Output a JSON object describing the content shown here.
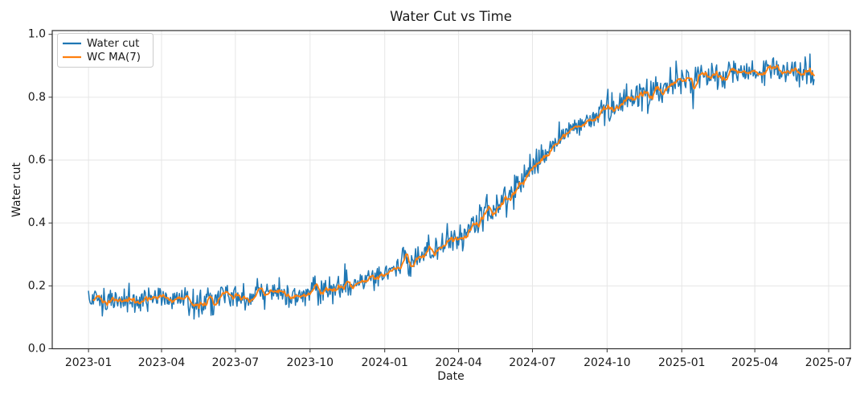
{
  "figure": {
    "title": "Water Cut vs Time",
    "xlabel": "Date",
    "ylabel": "Water cut"
  },
  "legend": {
    "position": "upper left",
    "items": [
      {
        "label": "Water cut",
        "color": "#1f77b4"
      },
      {
        "label": "WC MA(7)",
        "color": "#ff7f0e"
      }
    ]
  },
  "chart_data": {
    "type": "line",
    "title": "Water Cut vs Time",
    "xlabel": "Date",
    "ylabel": "Water cut",
    "ylim": [
      0.0,
      1.0
    ],
    "yticks": [
      0.0,
      0.2,
      0.4,
      0.6,
      0.8,
      1.0
    ],
    "xticks": [
      "2023-01",
      "2023-04",
      "2023-07",
      "2023-10",
      "2024-01",
      "2024-04",
      "2024-07",
      "2024-10",
      "2025-01",
      "2025-04",
      "2025-07"
    ],
    "grid": true,
    "legend_position": "upper left",
    "x_start": "2023-01-01",
    "x_end": "2025-06-13",
    "sampling": "daily",
    "series": [
      {
        "name": "Water cut",
        "color": "#1f77b4",
        "role": "raw_daily",
        "line_width": 1.5,
        "noise_std": 0.022,
        "noise_seed": 1337
      },
      {
        "name": "WC MA(7)",
        "color": "#ff7f0e",
        "role": "moving_average",
        "window": 7,
        "line_width": 1.9
      }
    ],
    "trend_anchors": [
      [
        "2023-01-01",
        0.168
      ],
      [
        "2023-01-15",
        0.158
      ],
      [
        "2023-02-01",
        0.155
      ],
      [
        "2023-02-15",
        0.158
      ],
      [
        "2023-03-01",
        0.155
      ],
      [
        "2023-03-15",
        0.16
      ],
      [
        "2023-04-01",
        0.158
      ],
      [
        "2023-04-15",
        0.162
      ],
      [
        "2023-05-01",
        0.154
      ],
      [
        "2023-05-15",
        0.152
      ],
      [
        "2023-06-01",
        0.158
      ],
      [
        "2023-06-15",
        0.163
      ],
      [
        "2023-07-01",
        0.163
      ],
      [
        "2023-07-15",
        0.168
      ],
      [
        "2023-08-01",
        0.168
      ],
      [
        "2023-08-15",
        0.172
      ],
      [
        "2023-09-01",
        0.172
      ],
      [
        "2023-09-15",
        0.176
      ],
      [
        "2023-10-01",
        0.179
      ],
      [
        "2023-10-15",
        0.183
      ],
      [
        "2023-11-01",
        0.192
      ],
      [
        "2023-11-15",
        0.201
      ],
      [
        "2023-12-01",
        0.212
      ],
      [
        "2023-12-15",
        0.225
      ],
      [
        "2024-01-01",
        0.24
      ],
      [
        "2024-01-15",
        0.26
      ],
      [
        "2024-02-01",
        0.282
      ],
      [
        "2024-02-15",
        0.3
      ],
      [
        "2024-03-01",
        0.318
      ],
      [
        "2024-03-15",
        0.335
      ],
      [
        "2024-04-01",
        0.352
      ],
      [
        "2024-04-15",
        0.382
      ],
      [
        "2024-05-01",
        0.415
      ],
      [
        "2024-05-15",
        0.448
      ],
      [
        "2024-06-01",
        0.486
      ],
      [
        "2024-06-15",
        0.528
      ],
      [
        "2024-07-01",
        0.575
      ],
      [
        "2024-07-15",
        0.62
      ],
      [
        "2024-08-01",
        0.663
      ],
      [
        "2024-08-15",
        0.695
      ],
      [
        "2024-09-01",
        0.724
      ],
      [
        "2024-09-15",
        0.742
      ],
      [
        "2024-10-01",
        0.76
      ],
      [
        "2024-10-15",
        0.78
      ],
      [
        "2024-11-01",
        0.798
      ],
      [
        "2024-11-15",
        0.81
      ],
      [
        "2024-12-01",
        0.822
      ],
      [
        "2024-12-15",
        0.835
      ],
      [
        "2025-01-01",
        0.848
      ],
      [
        "2025-01-15",
        0.856
      ],
      [
        "2025-02-01",
        0.862
      ],
      [
        "2025-02-15",
        0.868
      ],
      [
        "2025-03-01",
        0.871
      ],
      [
        "2025-03-15",
        0.874
      ],
      [
        "2025-04-01",
        0.878
      ],
      [
        "2025-04-15",
        0.884
      ],
      [
        "2025-05-01",
        0.886
      ],
      [
        "2025-05-15",
        0.882
      ],
      [
        "2025-06-01",
        0.88
      ],
      [
        "2025-06-13",
        0.873
      ]
    ]
  }
}
